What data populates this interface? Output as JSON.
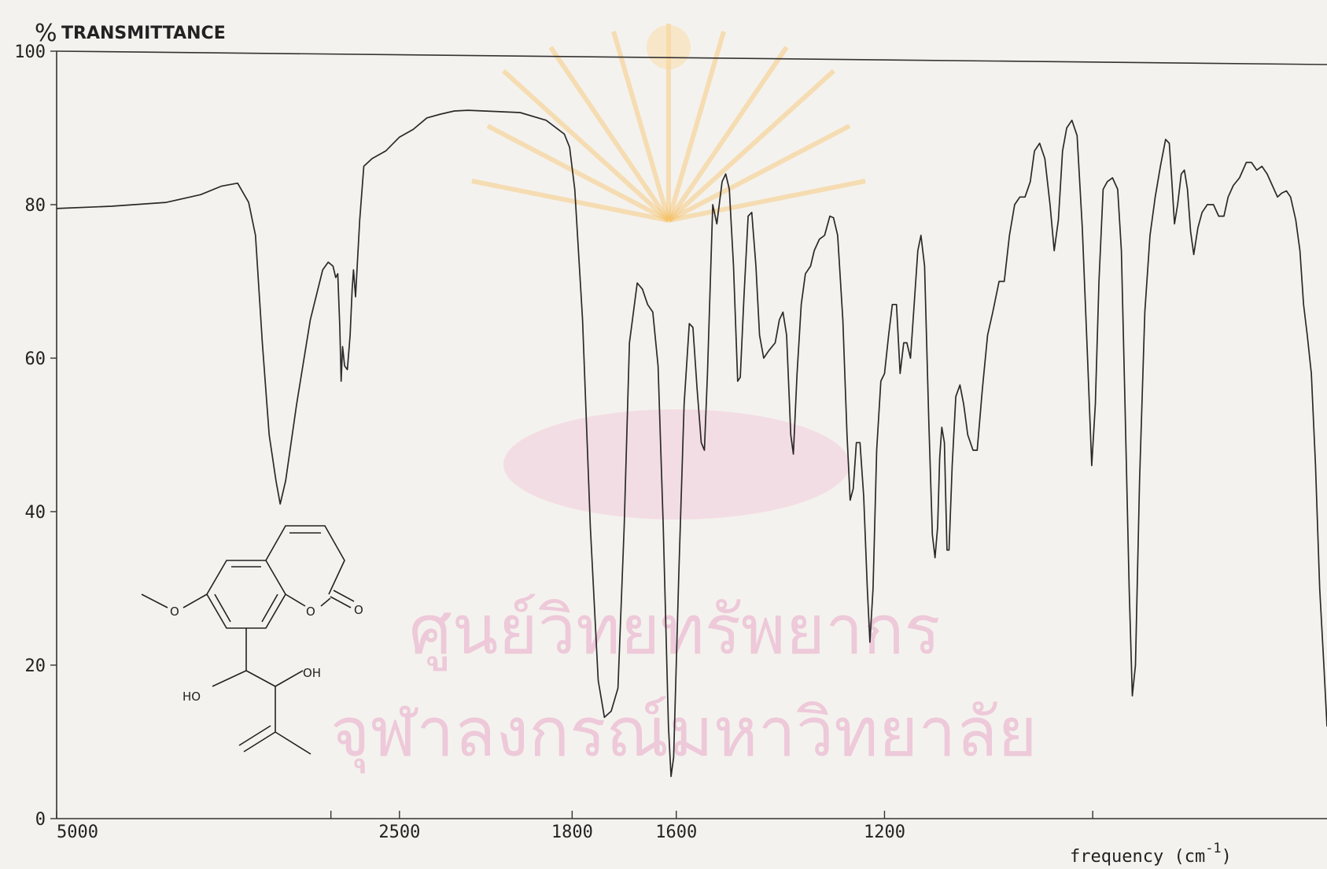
{
  "chart_data": {
    "type": "line",
    "title": "",
    "ylabel_symbol": "%",
    "ylabel": "TRANSMITTANCE",
    "xlabel": "frequency (cm-1)",
    "xlabel_main": "frequency (cm",
    "xlabel_exp": "-1",
    "xlabel_close": ")",
    "x_ticks": [
      "5000",
      "2500",
      "1800",
      "1600",
      "1200"
    ],
    "y_ticks": [
      "100",
      "80",
      "60",
      "40",
      "20",
      "0"
    ],
    "ylim": [
      0,
      100
    ],
    "grid": false,
    "series": [
      {
        "points": [
          [
            5000,
            79.5
          ],
          [
            4600,
            79.8
          ],
          [
            4200,
            80.3
          ],
          [
            3950,
            81.3
          ],
          [
            3800,
            82.4
          ],
          [
            3680,
            82.8
          ],
          [
            3600,
            80.3
          ],
          [
            3550,
            76
          ],
          [
            3500,
            62
          ],
          [
            3450,
            50
          ],
          [
            3400,
            44
          ],
          [
            3370,
            41
          ],
          [
            3330,
            44
          ],
          [
            3250,
            54
          ],
          [
            3150,
            65
          ],
          [
            3060,
            71.5
          ],
          [
            3020,
            72.5
          ],
          [
            2985,
            72
          ],
          [
            2965,
            70.5
          ],
          [
            2950,
            71
          ],
          [
            2935,
            64
          ],
          [
            2925,
            57
          ],
          [
            2915,
            61.5
          ],
          [
            2900,
            59
          ],
          [
            2880,
            58.5
          ],
          [
            2860,
            63
          ],
          [
            2845,
            69
          ],
          [
            2835,
            71.5
          ],
          [
            2820,
            68
          ],
          [
            2790,
            78
          ],
          [
            2760,
            85
          ],
          [
            2700,
            86
          ],
          [
            2600,
            87
          ],
          [
            2500,
            88.8
          ],
          [
            2400,
            89.8
          ],
          [
            2300,
            91.3
          ],
          [
            2200,
            91.8
          ],
          [
            2100,
            92.2
          ],
          [
            2000,
            92.3
          ],
          [
            1900,
            92.0
          ],
          [
            1850,
            91
          ],
          [
            1815,
            89.2
          ],
          [
            1805,
            87.5
          ],
          [
            1795,
            82
          ],
          [
            1780,
            65
          ],
          [
            1765,
            38
          ],
          [
            1750,
            18
          ],
          [
            1738,
            13.2
          ],
          [
            1725,
            14
          ],
          [
            1712,
            17
          ],
          [
            1700,
            38
          ],
          [
            1690,
            62
          ],
          [
            1675,
            69.8
          ],
          [
            1665,
            69
          ],
          [
            1655,
            67
          ],
          [
            1645,
            66
          ],
          [
            1635,
            59
          ],
          [
            1625,
            38
          ],
          [
            1615,
            12
          ],
          [
            1610,
            5.5
          ],
          [
            1605,
            8
          ],
          [
            1595,
            32
          ],
          [
            1585,
            54
          ],
          [
            1575,
            64.5
          ],
          [
            1568,
            64
          ],
          [
            1560,
            56
          ],
          [
            1552,
            49
          ],
          [
            1546,
            48
          ],
          [
            1540,
            58
          ],
          [
            1530,
            80
          ],
          [
            1522,
            77.5
          ],
          [
            1512,
            83
          ],
          [
            1505,
            84
          ],
          [
            1498,
            82
          ],
          [
            1490,
            72
          ],
          [
            1482,
            57
          ],
          [
            1477,
            57.5
          ],
          [
            1470,
            68
          ],
          [
            1462,
            78.5
          ],
          [
            1455,
            79
          ],
          [
            1447,
            72
          ],
          [
            1440,
            63
          ],
          [
            1432,
            60
          ],
          [
            1422,
            61
          ],
          [
            1410,
            62
          ],
          [
            1402,
            65
          ],
          [
            1395,
            66
          ],
          [
            1388,
            63
          ],
          [
            1380,
            50
          ],
          [
            1375,
            47.5
          ],
          [
            1368,
            58
          ],
          [
            1360,
            67
          ],
          [
            1352,
            71
          ],
          [
            1342,
            72
          ],
          [
            1335,
            74
          ],
          [
            1325,
            75.5
          ],
          [
            1315,
            76
          ],
          [
            1305,
            78.5
          ],
          [
            1298,
            78.3
          ],
          [
            1290,
            76
          ],
          [
            1280,
            65
          ],
          [
            1272,
            50
          ],
          [
            1266,
            41.5
          ],
          [
            1260,
            43
          ],
          [
            1254,
            49
          ],
          [
            1247,
            49
          ],
          [
            1240,
            42
          ],
          [
            1233,
            30
          ],
          [
            1228,
            23
          ],
          [
            1222,
            30
          ],
          [
            1215,
            48
          ],
          [
            1207,
            57
          ],
          [
            1200,
            58
          ],
          [
            1192,
            63
          ],
          [
            1185,
            67
          ],
          [
            1177,
            67
          ],
          [
            1170,
            58
          ],
          [
            1163,
            62
          ],
          [
            1157,
            62
          ],
          [
            1150,
            60
          ],
          [
            1144,
            66
          ],
          [
            1136,
            74
          ],
          [
            1130,
            76
          ],
          [
            1123,
            72
          ],
          [
            1115,
            52
          ],
          [
            1108,
            37
          ],
          [
            1103,
            34
          ],
          [
            1098,
            38
          ],
          [
            1094,
            47
          ],
          [
            1090,
            51
          ],
          [
            1085,
            49
          ],
          [
            1080,
            35
          ],
          [
            1076,
            35
          ],
          [
            1070,
            46
          ],
          [
            1063,
            55
          ],
          [
            1055,
            56.5
          ],
          [
            1048,
            54
          ],
          [
            1040,
            50
          ],
          [
            1030,
            48
          ],
          [
            1022,
            48
          ],
          [
            1012,
            56
          ],
          [
            1002,
            63
          ],
          [
            992,
            66
          ],
          [
            980,
            70
          ],
          [
            970,
            70
          ],
          [
            960,
            76
          ],
          [
            950,
            80
          ],
          [
            940,
            81
          ],
          [
            930,
            81
          ],
          [
            920,
            83
          ],
          [
            912,
            87
          ],
          [
            902,
            88
          ],
          [
            892,
            86
          ],
          [
            882,
            80
          ],
          [
            874,
            74
          ],
          [
            866,
            78
          ],
          [
            858,
            87
          ],
          [
            850,
            90
          ],
          [
            840,
            91
          ],
          [
            830,
            89
          ],
          [
            820,
            77
          ],
          [
            810,
            60
          ],
          [
            802,
            46
          ],
          [
            795,
            54
          ],
          [
            788,
            70
          ],
          [
            780,
            82
          ],
          [
            772,
            83
          ],
          [
            762,
            83.5
          ],
          [
            752,
            82
          ],
          [
            745,
            74
          ],
          [
            738,
            54
          ],
          [
            730,
            30
          ],
          [
            724,
            16
          ],
          [
            718,
            20
          ],
          [
            710,
            44
          ],
          [
            700,
            66
          ],
          [
            690,
            76
          ],
          [
            680,
            81
          ],
          [
            670,
            85
          ],
          [
            660,
            88.5
          ],
          [
            653,
            88
          ],
          [
            648,
            83
          ],
          [
            643,
            77.5
          ],
          [
            637,
            80
          ],
          [
            630,
            84
          ],
          [
            624,
            84.5
          ],
          [
            618,
            82
          ],
          [
            612,
            76.5
          ],
          [
            606,
            73.5
          ],
          [
            598,
            77
          ],
          [
            590,
            79
          ],
          [
            580,
            80
          ],
          [
            568,
            80
          ],
          [
            558,
            78.5
          ],
          [
            548,
            78.5
          ],
          [
            540,
            81
          ],
          [
            530,
            82.5
          ],
          [
            518,
            83.5
          ],
          [
            505,
            85.5
          ],
          [
            495,
            85.5
          ],
          [
            485,
            84.5
          ],
          [
            475,
            85
          ],
          [
            465,
            84
          ],
          [
            455,
            82.5
          ],
          [
            445,
            81
          ],
          [
            437,
            81.5
          ],
          [
            428,
            81.8
          ],
          [
            420,
            81
          ],
          [
            410,
            78
          ],
          [
            402,
            74
          ],
          [
            395,
            67
          ],
          [
            388,
            63
          ],
          [
            380,
            58
          ],
          [
            372,
            46
          ],
          [
            364,
            30
          ],
          [
            356,
            20
          ],
          [
            350,
            12
          ]
        ]
      }
    ]
  },
  "structure": {
    "atom_o_methoxy": "O",
    "atom_o_ring": "O",
    "atom_o_carbonyl": "O",
    "atom_ho": "HO",
    "atom_oh": "OH"
  }
}
